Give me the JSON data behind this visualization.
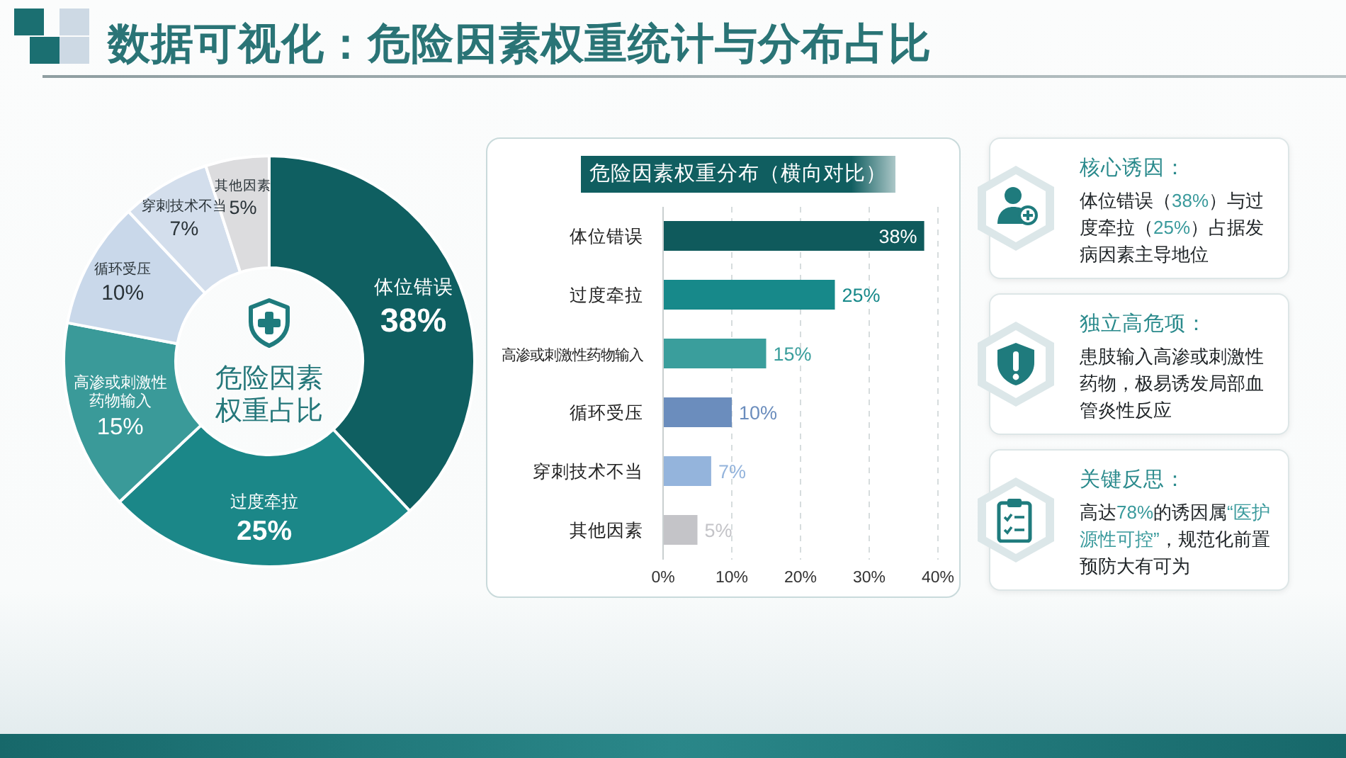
{
  "chart_data": [
    {
      "type": "donut",
      "title": "数据可视化：危险因素权重统计与分布占比",
      "annotations": [
        "危险因素权重占比"
      ],
      "categories": [
        "体位错误",
        "过度牵拉",
        "高渗或刺激性药物输入",
        "循环受压",
        "穿刺技术不当",
        "其他因素"
      ],
      "values": [
        38,
        25,
        15,
        10,
        7,
        5
      ],
      "colors": [
        "#0f5f61",
        "#1b8788",
        "#3a9a99",
        "#c9d8ea",
        "#d3deec",
        "#dcdcde"
      ],
      "value_labels": [
        "38%",
        "25%",
        "15%",
        "10%",
        "7%",
        "5%"
      ]
    },
    {
      "type": "bar",
      "orientation": "horizontal",
      "title": "危险因素权重分布（横向对比）",
      "categories": [
        "体位错误",
        "过度牵拉",
        "高渗或刺激性药物输入",
        "循环受压",
        "穿刺技术不当",
        "其他因素"
      ],
      "values": [
        38,
        25,
        15,
        10,
        7,
        5
      ],
      "colors": [
        "#0f5a5c",
        "#17898a",
        "#3a9e9c",
        "#6b8dbd",
        "#94b4dc",
        "#c4c4c8"
      ],
      "value_labels": [
        "38%",
        "25%",
        "15%",
        "10%",
        "7%",
        "5%"
      ],
      "xlim": [
        0,
        40
      ],
      "xticks": [
        {
          "value": 0,
          "label": "0%"
        },
        {
          "value": 10,
          "label": "10%"
        },
        {
          "value": 20,
          "label": "20%"
        },
        {
          "value": 30,
          "label": "30%"
        },
        {
          "value": 40,
          "label": "40%"
        }
      ],
      "grid": "x"
    },
    {
      "type": "other",
      "annotations": [
        "核心诱因：",
        "体位错误（38%）与过度牵拉（25%）占据发病因素主导地位",
        "独立高危项：",
        "患肢输入高渗或刺激性药物，极易诱发局部血管炎性反应",
        "关键反思：",
        "高达78%的诱因属“医护源性可控”，规范化前置预防大有可为"
      ]
    }
  ]
}
